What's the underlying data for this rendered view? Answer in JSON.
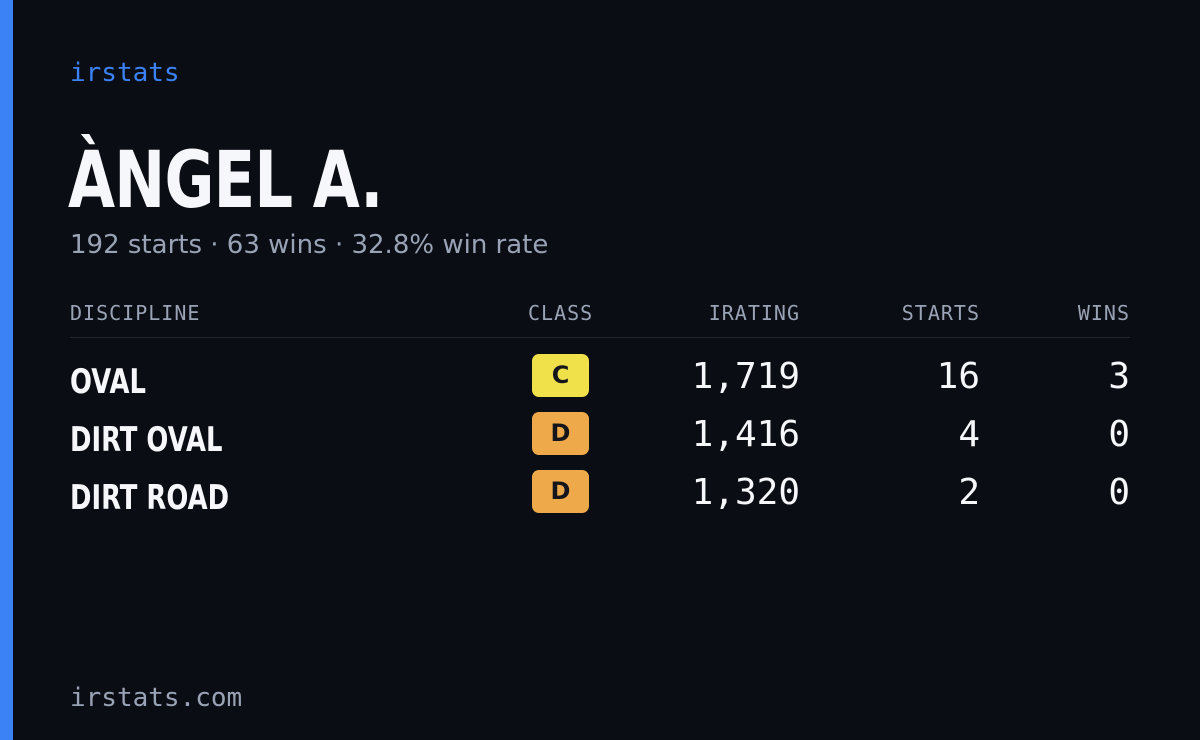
{
  "brand": "irstats",
  "driver": {
    "name": "ÀNGEL A.",
    "starts_text": "192 starts",
    "wins_text": "63 wins",
    "win_rate_text": "32.8% win rate",
    "separator": "·"
  },
  "table": {
    "headers": {
      "discipline": "DISCIPLINE",
      "class": "CLASS",
      "irating": "IRATING",
      "starts": "STARTS",
      "wins": "WINS"
    },
    "rows": [
      {
        "discipline": "OVAL",
        "class": "C",
        "class_color": "#f0e04a",
        "irating": "1,719",
        "starts": "16",
        "wins": "3"
      },
      {
        "discipline": "DIRT OVAL",
        "class": "D",
        "class_color": "#eeaa4a",
        "irating": "1,416",
        "starts": "4",
        "wins": "0"
      },
      {
        "discipline": "DIRT ROAD",
        "class": "D",
        "class_color": "#eeaa4a",
        "irating": "1,320",
        "starts": "2",
        "wins": "0"
      }
    ]
  },
  "footer": "irstats.com",
  "colors": {
    "accent": "#3b82f6",
    "background": "#0a0d14",
    "muted_text": "#9aa3b5"
  }
}
